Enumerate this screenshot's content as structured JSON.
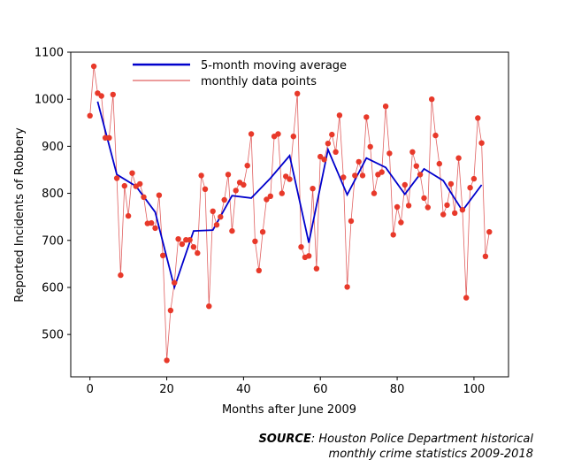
{
  "chart_data": {
    "type": "line",
    "xlabel": "Months after June 2009",
    "ylabel": "Reported Incidents of Robbery",
    "xlim": [
      -5,
      109
    ],
    "ylim": [
      410,
      1100
    ],
    "xticks": [
      0,
      20,
      40,
      60,
      80,
      100
    ],
    "yticks": [
      500,
      600,
      700,
      800,
      900,
      1000,
      1100
    ],
    "grid": false,
    "legend_placement": "top-left",
    "series": [
      {
        "name": "5-month moving average",
        "color": "#0000cc",
        "x": [
          2,
          7,
          12,
          17,
          22,
          27,
          32,
          37,
          42,
          47,
          52,
          57,
          62,
          67,
          72,
          77,
          82,
          87,
          92,
          97,
          102
        ],
        "values": [
          995,
          840,
          815,
          760,
          600,
          720,
          722,
          795,
          790,
          832,
          880,
          695,
          893,
          797,
          875,
          855,
          798,
          852,
          827,
          763,
          818
        ]
      },
      {
        "name": "monthly data points",
        "color": "#e8392a",
        "line_color": "#e06060",
        "x": [
          0,
          1,
          2,
          3,
          4,
          5,
          6,
          7,
          8,
          9,
          10,
          11,
          12,
          13,
          14,
          15,
          16,
          17,
          18,
          19,
          20,
          21,
          22,
          23,
          24,
          25,
          26,
          27,
          28,
          29,
          30,
          31,
          32,
          33,
          34,
          35,
          36,
          37,
          38,
          39,
          40,
          41,
          42,
          43,
          44,
          45,
          46,
          47,
          48,
          49,
          50,
          51,
          52,
          53,
          54,
          55,
          56,
          57,
          58,
          59,
          60,
          61,
          62,
          63,
          64,
          65,
          66,
          67,
          68,
          69,
          70,
          71,
          72,
          73,
          74,
          75,
          76,
          77,
          78,
          79,
          80,
          81,
          82,
          83,
          84,
          85,
          86,
          87,
          88,
          89,
          90,
          91,
          92,
          93,
          94,
          95,
          96,
          97,
          98,
          99,
          100,
          101,
          102,
          103,
          104
        ],
        "values": [
          965,
          1070,
          1013,
          1007,
          918,
          918,
          1010,
          832,
          626,
          816,
          752,
          843,
          815,
          820,
          792,
          736,
          737,
          726,
          796,
          668,
          445,
          551,
          610,
          703,
          692,
          701,
          701,
          686,
          673,
          838,
          809,
          560,
          762,
          733,
          750,
          786,
          840,
          720,
          806,
          823,
          818,
          859,
          926,
          698,
          636,
          718,
          787,
          794,
          921,
          926,
          800,
          836,
          830,
          921,
          1012,
          686,
          664,
          667,
          810,
          640,
          878,
          872,
          906,
          925,
          888,
          966,
          834,
          601,
          741,
          838,
          867,
          838,
          962,
          899,
          800,
          840,
          845,
          985,
          885,
          712,
          771,
          738,
          818,
          774,
          888,
          858,
          840,
          790,
          770,
          1000,
          923,
          863,
          755,
          775,
          820,
          758,
          875,
          765,
          578,
          812,
          831,
          960,
          907,
          666,
          718
        ]
      }
    ]
  },
  "source": {
    "label": "SOURCE",
    "separator": ":",
    "line1": "Houston Police Department historical",
    "line2": "monthly crime statistics 2009-2018"
  }
}
